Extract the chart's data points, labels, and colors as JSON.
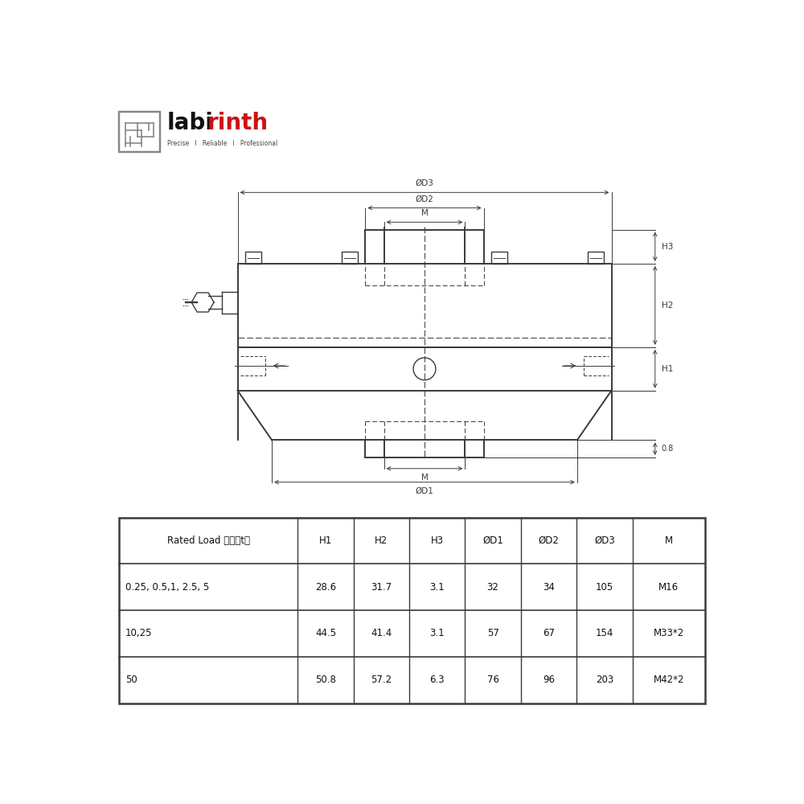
{
  "bg_color": "#ffffff",
  "line_color": "#3a3a3a",
  "logo_subtitle": "Precise   I   Reliable   I   Professional",
  "table_headers": [
    "Rated Load 载荷（t）",
    "H1",
    "H2",
    "H3",
    "ØD1",
    "ØD2",
    "ØD3",
    "M"
  ],
  "table_rows": [
    [
      "0.25, 0.5,1, 2.5, 5",
      "28.6",
      "31.7",
      "3.1",
      "32",
      "34",
      "105",
      "M16"
    ],
    [
      "10,25",
      "44.5",
      "41.4",
      "3.1",
      "57",
      "67",
      "154",
      "M33*2"
    ],
    [
      "50",
      "50.8",
      "57.2",
      "6.3",
      "76",
      "96",
      "203",
      "M42*2"
    ]
  ],
  "dim_labels": {
    "OD3": "ØD3",
    "OD2": "ØD2",
    "OD1": "ØD1",
    "M_top": "M",
    "M_bot": "M",
    "H1": "H1",
    "H2": "H2",
    "H3": "H3",
    "dim_08": "0.8"
  },
  "col_widths_rel": [
    3.2,
    1.0,
    1.0,
    1.0,
    1.0,
    1.0,
    1.0,
    1.3
  ]
}
